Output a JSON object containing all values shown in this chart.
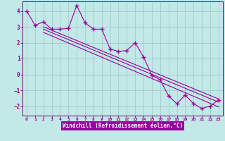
{
  "xlabel": "Windchill (Refroidissement éolien,°C)",
  "bg_color": "#c2e8e8",
  "grid_color": "#9ecece",
  "line_color": "#990099",
  "spine_color": "#660066",
  "xlim": [
    -0.5,
    23.5
  ],
  "ylim": [
    -2.6,
    4.6
  ],
  "yticks": [
    -2,
    -1,
    0,
    1,
    2,
    3,
    4
  ],
  "xticks": [
    0,
    1,
    2,
    3,
    4,
    5,
    6,
    7,
    8,
    9,
    10,
    11,
    12,
    13,
    14,
    15,
    16,
    17,
    18,
    19,
    20,
    21,
    22,
    23
  ],
  "data_x": [
    0,
    1,
    2,
    3,
    4,
    5,
    6,
    7,
    8,
    9,
    10,
    11,
    12,
    13,
    14,
    15,
    16,
    17,
    18,
    19,
    20,
    21,
    22,
    23
  ],
  "data_y": [
    4.0,
    3.1,
    3.3,
    2.85,
    2.85,
    2.9,
    4.35,
    3.25,
    2.85,
    2.85,
    1.6,
    1.45,
    1.5,
    2.0,
    1.1,
    -0.05,
    -0.35,
    -1.35,
    -1.85,
    -1.3,
    -1.85,
    -2.15,
    -2.0,
    -1.6
  ],
  "reg_line1_x": [
    2,
    23
  ],
  "reg_line1_y": [
    3.0,
    -1.55
  ],
  "reg_line2_x": [
    2,
    23
  ],
  "reg_line2_y": [
    2.85,
    -1.75
  ],
  "reg_line3_x": [
    2,
    23
  ],
  "reg_line3_y": [
    2.65,
    -2.05
  ]
}
